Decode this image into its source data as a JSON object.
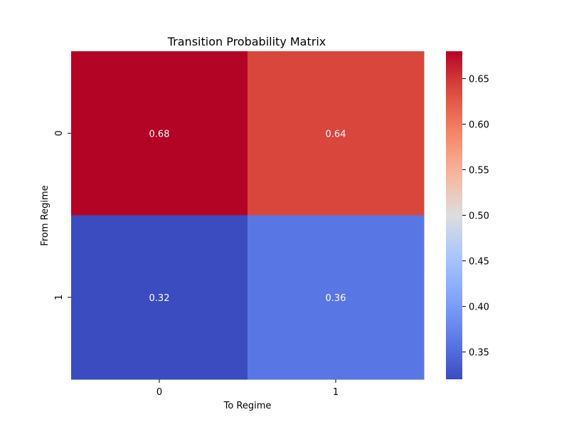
{
  "chart_data": {
    "type": "heatmap",
    "title": "Transition Probability Matrix",
    "xlabel": "To Regime",
    "ylabel": "From Regime",
    "x_categories": [
      "0",
      "1"
    ],
    "y_categories": [
      "0",
      "1"
    ],
    "values": [
      [
        0.68,
        0.64
      ],
      [
        0.32,
        0.36
      ]
    ],
    "cell_labels": [
      [
        "0.68",
        "0.64"
      ],
      [
        "0.32",
        "0.36"
      ]
    ],
    "colormap": "coolwarm",
    "colorbar": {
      "range": [
        0.32,
        0.68
      ],
      "ticks": [
        0.35,
        0.4,
        0.45,
        0.5,
        0.55,
        0.6,
        0.65
      ],
      "tick_labels": [
        "0.35",
        "0.40",
        "0.45",
        "0.50",
        "0.55",
        "0.60",
        "0.65"
      ]
    },
    "annotation_color": "#ffffff"
  }
}
